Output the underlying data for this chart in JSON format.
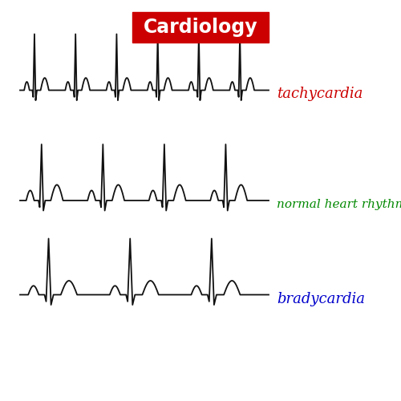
{
  "title": "Cardiology",
  "title_bg": "#cc0000",
  "title_color": "#ffffff",
  "label_tachycardia": "tachycardia",
  "label_normal": "normal heart rhythm",
  "label_bradycardia": "bradycardia",
  "color_tachycardia": "#cc0000",
  "color_normal": "#008800",
  "color_bradycardia": "#0000cc",
  "ecg_color": "#111111",
  "bg_color": "#ffffff",
  "ecg_lw": 1.3,
  "title_fontsize": 17,
  "label_fontsize_small": 11,
  "label_fontsize_large": 13
}
